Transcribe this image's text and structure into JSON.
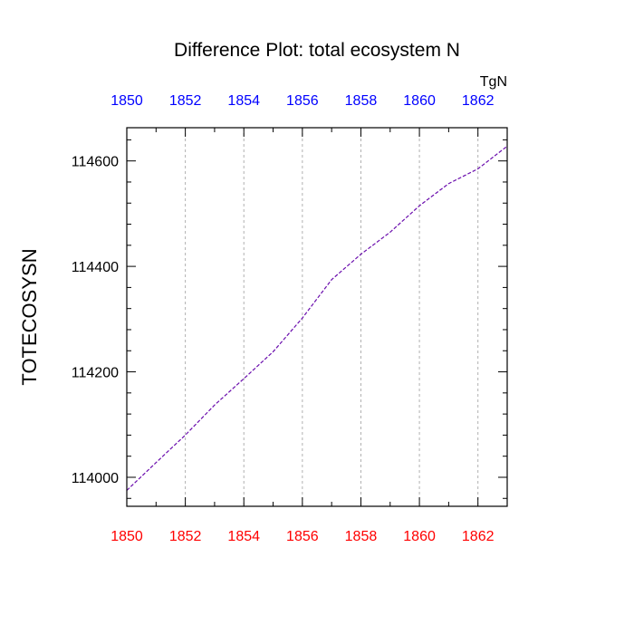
{
  "chart_data": {
    "type": "line",
    "title": "Difference Plot: total ecosystem N",
    "ylabel": "TOTECOSYSN",
    "units": "TgN",
    "xlim": [
      1850,
      1863
    ],
    "ylim": [
      113945,
      114663
    ],
    "x_ticks": [
      "1850",
      "1852",
      "1854",
      "1856",
      "1858",
      "1860",
      "1862"
    ],
    "y_ticks": [
      "114000",
      "114200",
      "114400",
      "114600"
    ],
    "top_axis_color": "#0000ff",
    "bottom_axis_color": "#ff0000",
    "grid": "vertical dashed at major x ticks",
    "series": [
      {
        "color": "#6a0dad",
        "line_style": "dashed",
        "x": [
          1850,
          1851,
          1852,
          1853,
          1854,
          1855,
          1856,
          1857,
          1858,
          1859,
          1860,
          1861,
          1862,
          1863
        ],
        "y": [
          113975,
          114028,
          114080,
          114137,
          114187,
          114238,
          114302,
          114375,
          114423,
          114465,
          114515,
          114557,
          114585,
          114628
        ]
      }
    ]
  }
}
